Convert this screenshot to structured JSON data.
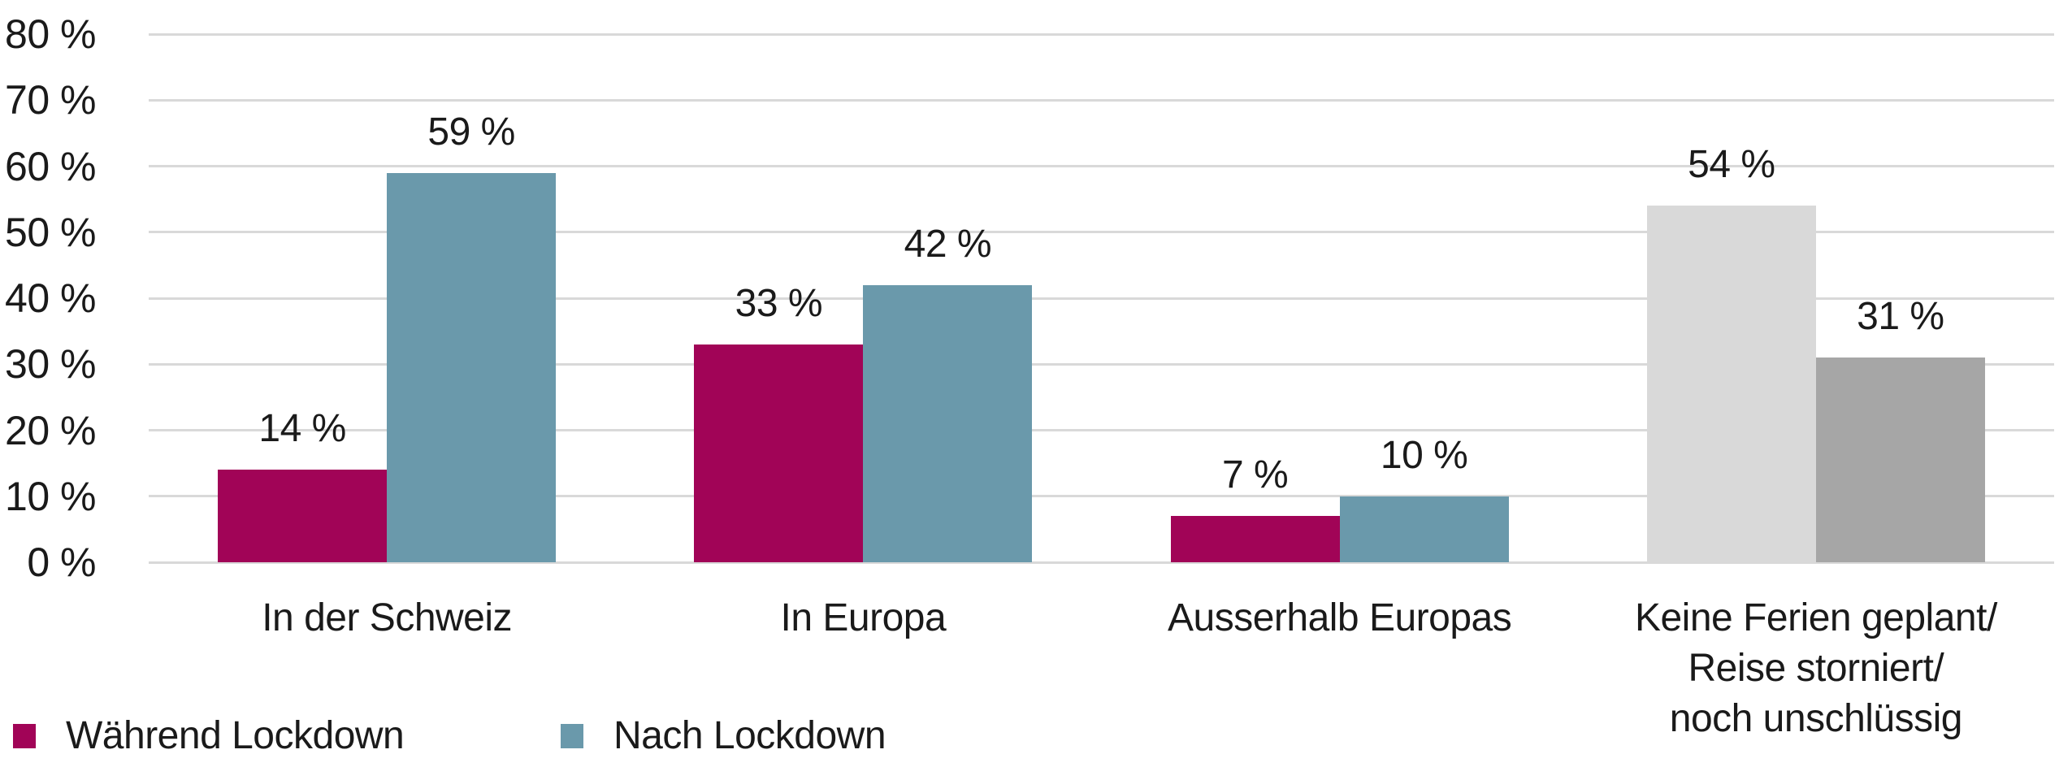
{
  "chart_data": {
    "type": "bar",
    "title": "",
    "xlabel": "",
    "ylabel": "",
    "ylim": [
      0,
      80
    ],
    "ytick_step": 10,
    "grid": true,
    "legend_position": "bottom-left",
    "yticks": [
      "80 %",
      "70 %",
      "60 %",
      "50 %",
      "40 %",
      "30 %",
      "20 %",
      "10 %",
      "0 %"
    ],
    "categories": [
      "In der Schweiz",
      "In Europa",
      "Ausserhalb Europas",
      "Keine Ferien geplant/\nReise storniert/\nnoch unschlüssig"
    ],
    "series": [
      {
        "name": "Während Lockdown",
        "color": "#a10457",
        "values": [
          14,
          33,
          7,
          54
        ]
      },
      {
        "name": "Nach Lockdown",
        "color": "#6a99ab",
        "values": [
          59,
          42,
          10,
          31
        ]
      }
    ],
    "groups": [
      {
        "category": "In der Schweiz",
        "bars": [
          {
            "series": "Während Lockdown",
            "value": 14,
            "label": "14 %",
            "color": "#a10457"
          },
          {
            "series": "Nach Lockdown",
            "value": 59,
            "label": "59 %",
            "color": "#6a99ab"
          }
        ]
      },
      {
        "category": "In Europa",
        "bars": [
          {
            "series": "Während Lockdown",
            "value": 33,
            "label": "33 %",
            "color": "#a10457"
          },
          {
            "series": "Nach Lockdown",
            "value": 42,
            "label": "42 %",
            "color": "#6a99ab"
          }
        ]
      },
      {
        "category": "Ausserhalb Europas",
        "bars": [
          {
            "series": "Während Lockdown",
            "value": 7,
            "label": "7 %",
            "color": "#a10457"
          },
          {
            "series": "Nach Lockdown",
            "value": 10,
            "label": "10 %",
            "color": "#6a99ab"
          }
        ]
      },
      {
        "category": "Keine Ferien geplant/\nReise storniert/\nnoch unschlüssig",
        "bars": [
          {
            "series": "Während Lockdown",
            "value": 54,
            "label": "54 %",
            "color": "#d9d9d9"
          },
          {
            "series": "Nach Lockdown",
            "value": 31,
            "label": "31 %",
            "color": "#a6a6a6"
          }
        ]
      }
    ],
    "legend": [
      {
        "label": "Während Lockdown",
        "color": "#a10457"
      },
      {
        "label": "Nach Lockdown",
        "color": "#6a99ab"
      }
    ],
    "colors": {
      "series1": "#a10457",
      "series2": "#6a99ab",
      "muted_light": "#d9d9d9",
      "muted_dark": "#a6a6a6",
      "gridline": "#d9d9d9",
      "text": "#1a1a1a",
      "background": "#ffffff"
    }
  }
}
